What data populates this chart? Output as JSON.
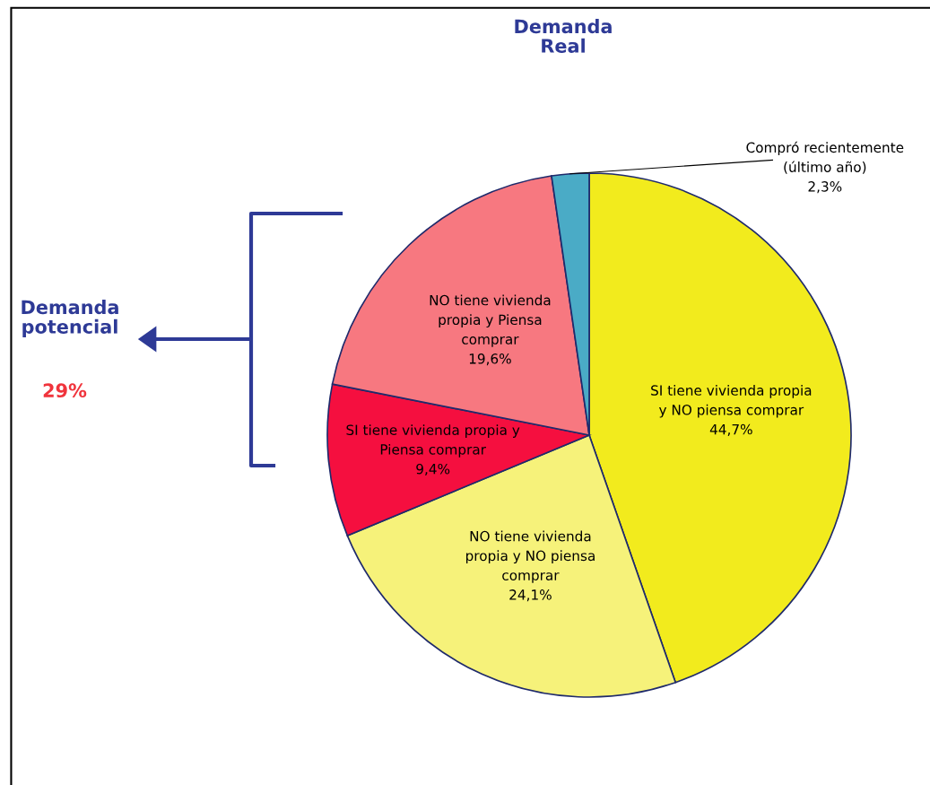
{
  "chart_data": {
    "type": "pie",
    "categories": [
      "SI tiene vivienda propia\ny NO piensa comprar",
      "NO tiene vivienda\npropia y NO piensa\ncomprar",
      "SI tiene vivienda propia y\nPiensa comprar",
      "NO tiene vivienda\npropia y Piensa\ncomprar",
      "Compró recientemente\n(último año)"
    ],
    "values": [
      44.7,
      24.1,
      9.4,
      19.6,
      2.3
    ],
    "value_labels": [
      "44,7%",
      "24,1%",
      "9,4%",
      "19,6%",
      "2,3%"
    ],
    "colors": [
      "#f2eb1d",
      "#f6f27a",
      "#f50f3f",
      "#f77880",
      "#4aabc6"
    ],
    "annotations": [
      "Demanda\nReal",
      "Demanda\npotencial",
      "29%"
    ],
    "legend": false
  }
}
